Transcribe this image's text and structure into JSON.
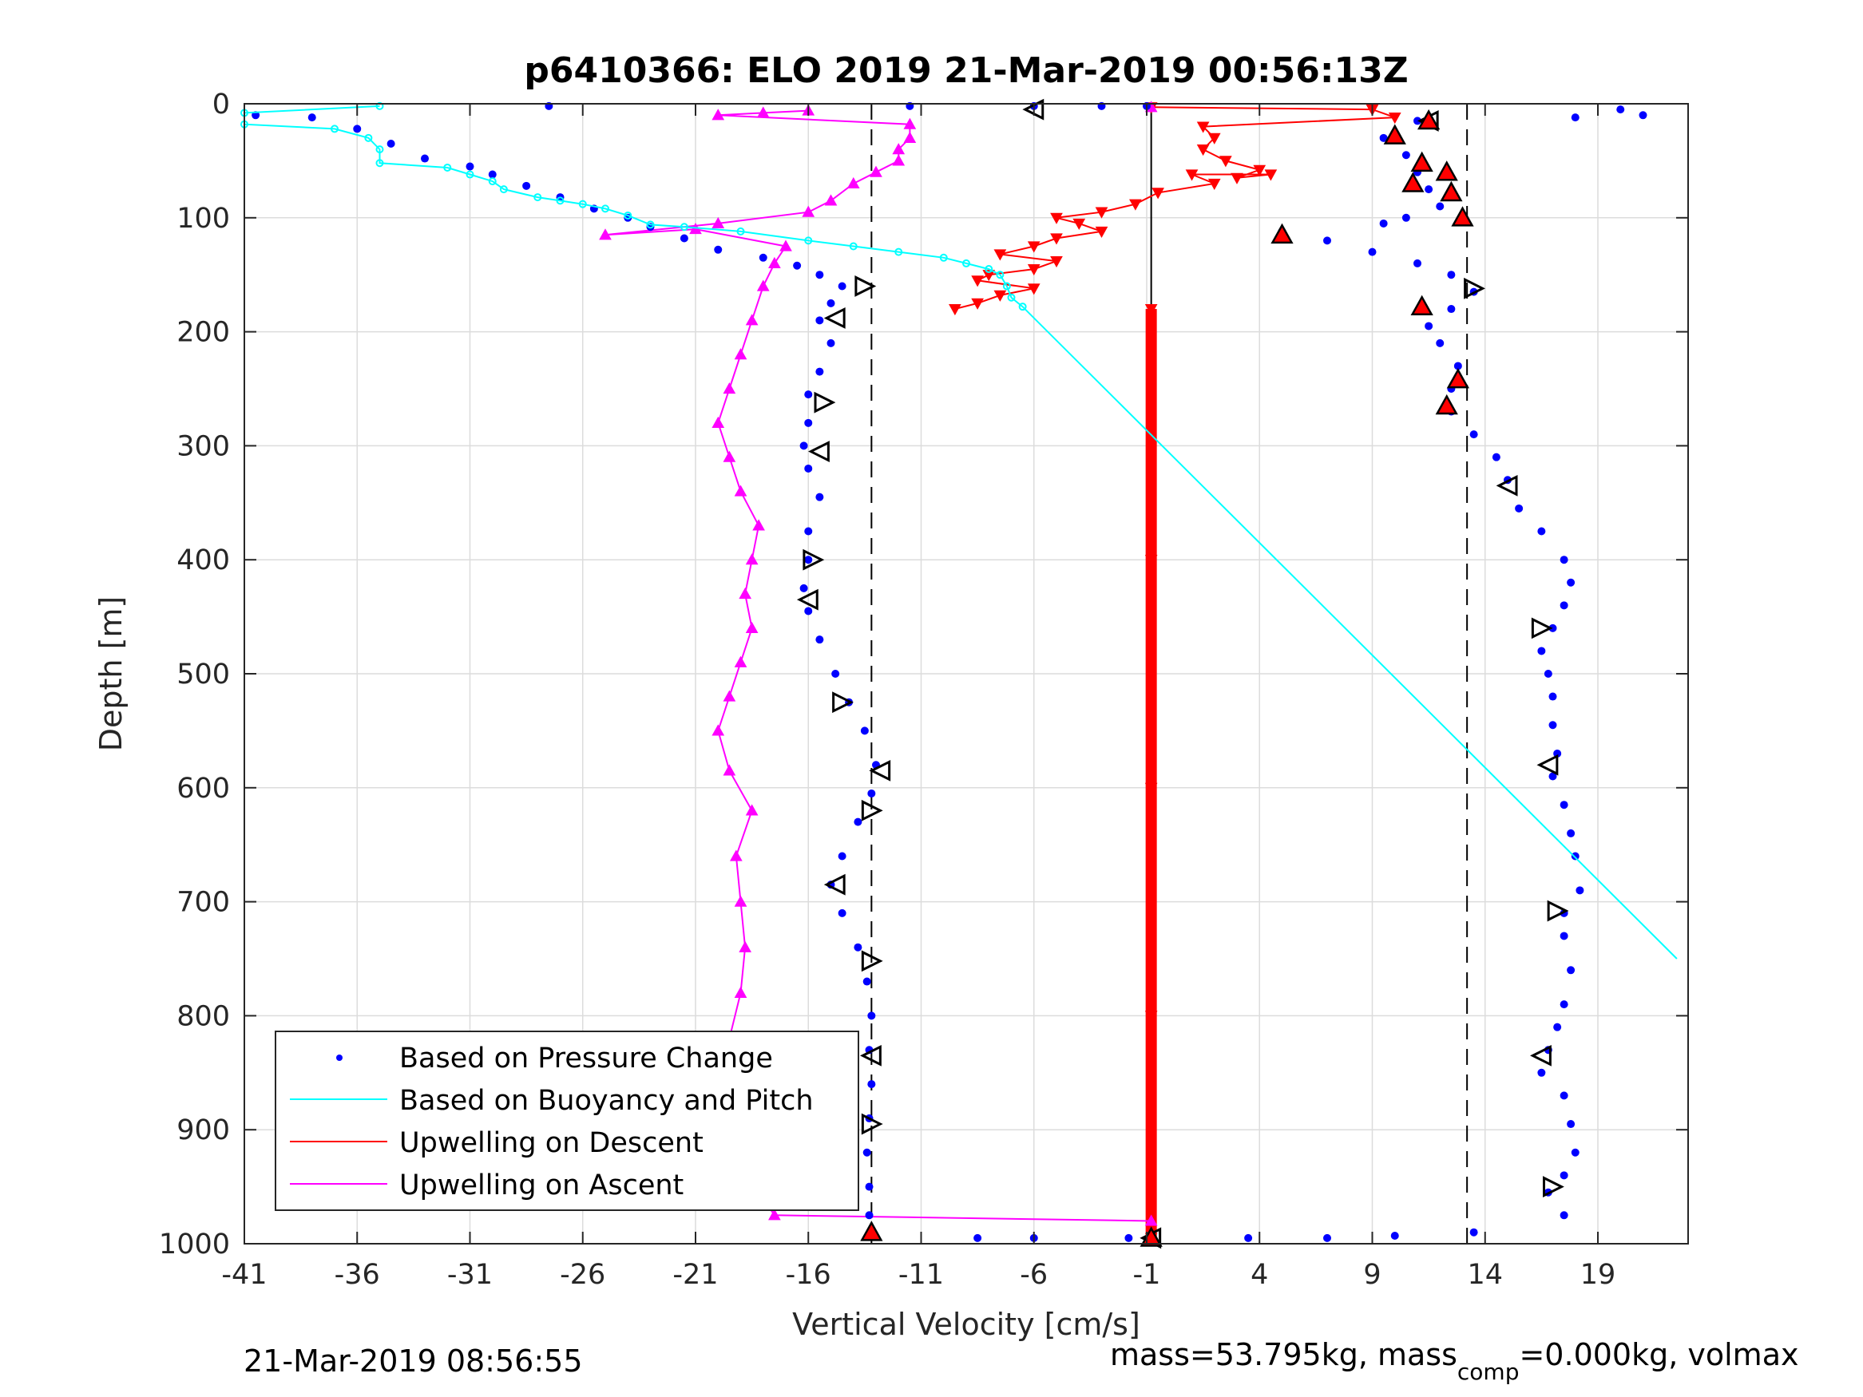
{
  "chart_data": {
    "type": "scatter",
    "title": "p6410366: ELO 2019 21-Mar-2019 00:56:13Z",
    "xlabel": "Vertical Velocity [cm/s]",
    "ylabel": "Depth [m]",
    "xlim": [
      -41,
      23
    ],
    "ylim": [
      0,
      1000
    ],
    "y_reversed": true,
    "xticks": [
      -41,
      -36,
      -31,
      -26,
      -21,
      -16,
      -11,
      -6,
      -1,
      4,
      9,
      14,
      19
    ],
    "yticks": [
      0,
      100,
      200,
      300,
      400,
      500,
      600,
      700,
      800,
      900,
      1000
    ],
    "grid": true,
    "legend_placement": "bottom-left",
    "reference_lines": {
      "vertical_dashed": [
        -13.2,
        13.2
      ],
      "vertical_solid": [
        -0.8
      ]
    },
    "series": [
      {
        "name": "Based on Pressure Change",
        "marker": "dot",
        "color": "#0000ff",
        "points": [
          [
            -40.5,
            10
          ],
          [
            -38,
            12
          ],
          [
            -36,
            22
          ],
          [
            -34.5,
            35
          ],
          [
            -33,
            48
          ],
          [
            -31,
            55
          ],
          [
            -30,
            62
          ],
          [
            -28.5,
            72
          ],
          [
            -27,
            82
          ],
          [
            -25.5,
            92
          ],
          [
            -24,
            100
          ],
          [
            -23,
            108
          ],
          [
            -21.5,
            118
          ],
          [
            -20,
            128
          ],
          [
            -18,
            135
          ],
          [
            -16.5,
            142
          ],
          [
            -15.5,
            150
          ],
          [
            -14.5,
            160
          ],
          [
            -15,
            175
          ],
          [
            -15.5,
            190
          ],
          [
            -15,
            210
          ],
          [
            -15.5,
            235
          ],
          [
            -16,
            255
          ],
          [
            -16,
            280
          ],
          [
            -16.2,
            300
          ],
          [
            -16,
            320
          ],
          [
            -15.5,
            345
          ],
          [
            -16,
            375
          ],
          [
            -16,
            400
          ],
          [
            -16.2,
            425
          ],
          [
            -16,
            445
          ],
          [
            -15.5,
            470
          ],
          [
            -14.8,
            500
          ],
          [
            -14.2,
            525
          ],
          [
            -13.5,
            550
          ],
          [
            -13,
            580
          ],
          [
            -13.2,
            605
          ],
          [
            -13.8,
            630
          ],
          [
            -14.5,
            660
          ],
          [
            -15,
            685
          ],
          [
            -14.5,
            710
          ],
          [
            -13.8,
            740
          ],
          [
            -13.4,
            770
          ],
          [
            -13.2,
            800
          ],
          [
            -13.3,
            830
          ],
          [
            -13.2,
            860
          ],
          [
            -13.3,
            890
          ],
          [
            -13.4,
            920
          ],
          [
            -13.3,
            950
          ],
          [
            -13.3,
            975
          ],
          [
            -13.2,
            990
          ],
          [
            -27.5,
            2
          ],
          [
            -11.5,
            2
          ],
          [
            -6,
            2
          ],
          [
            -3,
            2
          ],
          [
            -1,
            2
          ],
          [
            -1.8,
            995
          ],
          [
            -6,
            995
          ],
          [
            -8.5,
            995
          ],
          [
            3.5,
            995
          ],
          [
            7,
            995
          ],
          [
            10,
            993
          ],
          [
            13.5,
            990
          ],
          [
            11,
            15
          ],
          [
            9.5,
            30
          ],
          [
            10.5,
            45
          ],
          [
            11,
            60
          ],
          [
            11.5,
            75
          ],
          [
            12,
            90
          ],
          [
            10.5,
            100
          ],
          [
            9.5,
            105
          ],
          [
            5,
            112
          ],
          [
            7,
            120
          ],
          [
            9,
            130
          ],
          [
            11,
            140
          ],
          [
            12.5,
            150
          ],
          [
            13.5,
            165
          ],
          [
            12.5,
            180
          ],
          [
            11.5,
            195
          ],
          [
            12,
            210
          ],
          [
            12.8,
            230
          ],
          [
            12.5,
            250
          ],
          [
            12.5,
            270
          ],
          [
            13.5,
            290
          ],
          [
            14.5,
            310
          ],
          [
            15,
            330
          ],
          [
            15.5,
            355
          ],
          [
            16.5,
            375
          ],
          [
            17.5,
            400
          ],
          [
            17.8,
            420
          ],
          [
            17.5,
            440
          ],
          [
            17,
            460
          ],
          [
            16.5,
            480
          ],
          [
            16.8,
            500
          ],
          [
            17,
            520
          ],
          [
            17,
            545
          ],
          [
            17.2,
            570
          ],
          [
            17,
            590
          ],
          [
            17.5,
            615
          ],
          [
            17.8,
            640
          ],
          [
            18,
            660
          ],
          [
            18.2,
            690
          ],
          [
            17.5,
            710
          ],
          [
            17.5,
            730
          ],
          [
            17.8,
            760
          ],
          [
            17.5,
            790
          ],
          [
            17.2,
            810
          ],
          [
            16.8,
            830
          ],
          [
            16.5,
            850
          ],
          [
            17.5,
            870
          ],
          [
            17.8,
            895
          ],
          [
            18,
            920
          ],
          [
            17.5,
            940
          ],
          [
            16.8,
            955
          ],
          [
            17.5,
            975
          ],
          [
            20,
            5
          ],
          [
            21,
            10
          ],
          [
            18,
            12
          ]
        ]
      },
      {
        "name": "Based on Buoyancy and Pitch",
        "marker": "line",
        "color": "#00ffff",
        "points": [
          [
            -35,
            2
          ],
          [
            -41,
            8
          ],
          [
            -41,
            18
          ],
          [
            -37,
            22
          ],
          [
            -35.5,
            30
          ],
          [
            -35,
            40
          ],
          [
            -35,
            52
          ],
          [
            -32,
            56
          ],
          [
            -31,
            62
          ],
          [
            -30,
            68
          ],
          [
            -29.5,
            75
          ],
          [
            -28,
            82
          ],
          [
            -27,
            85
          ],
          [
            -26,
            88
          ],
          [
            -25,
            92
          ],
          [
            -24,
            98
          ],
          [
            -23,
            106
          ],
          [
            -21.5,
            108
          ],
          [
            -19,
            112
          ],
          [
            -16,
            120
          ],
          [
            -14,
            125
          ],
          [
            -12,
            130
          ],
          [
            -10,
            135
          ],
          [
            -9,
            140
          ],
          [
            -8,
            145
          ],
          [
            -7.5,
            150
          ],
          [
            -7.2,
            160
          ],
          [
            -7,
            170
          ],
          [
            -6.5,
            178
          ],
          [
            22.5,
            750
          ]
        ]
      },
      {
        "name": "Upwelling on Descent",
        "marker": "triangle-down",
        "color": "#ff0000",
        "points": [
          [
            -0.8,
            3
          ],
          [
            9,
            5
          ],
          [
            10,
            12
          ],
          [
            1.5,
            20
          ],
          [
            2,
            30
          ],
          [
            1.5,
            40
          ],
          [
            2.5,
            50
          ],
          [
            4,
            58
          ],
          [
            3,
            65
          ],
          [
            4.5,
            62
          ],
          [
            1,
            62
          ],
          [
            2,
            70
          ],
          [
            -0.5,
            78
          ],
          [
            -1.5,
            88
          ],
          [
            -3,
            95
          ],
          [
            -5,
            100
          ],
          [
            -4,
            105
          ],
          [
            -3,
            112
          ],
          [
            -5,
            118
          ],
          [
            -6,
            125
          ],
          [
            -7.5,
            132
          ],
          [
            -5,
            138
          ],
          [
            -6,
            145
          ],
          [
            -8,
            150
          ],
          [
            -8.5,
            155
          ],
          [
            -6,
            162
          ],
          [
            -7.5,
            168
          ],
          [
            -8.5,
            175
          ],
          [
            -9.5,
            180
          ],
          [
            -0.8,
            180
          ],
          [
            -0.8,
            400
          ],
          [
            -0.8,
            600
          ],
          [
            -0.8,
            800
          ],
          [
            -0.8,
            995
          ]
        ]
      },
      {
        "name": "Upwelling on Ascent",
        "marker": "triangle-up",
        "color": "#ff00ff",
        "points": [
          [
            -17.5,
            975
          ],
          [
            -18,
            960
          ],
          [
            -18.5,
            940
          ],
          [
            -18.8,
            900
          ],
          [
            -19,
            860
          ],
          [
            -19.5,
            820
          ],
          [
            -19,
            780
          ],
          [
            -18.8,
            740
          ],
          [
            -19,
            700
          ],
          [
            -19.2,
            660
          ],
          [
            -18.5,
            620
          ],
          [
            -19.5,
            585
          ],
          [
            -20,
            550
          ],
          [
            -19.5,
            520
          ],
          [
            -19,
            490
          ],
          [
            -18.5,
            460
          ],
          [
            -18.8,
            430
          ],
          [
            -18.5,
            400
          ],
          [
            -18.2,
            370
          ],
          [
            -19,
            340
          ],
          [
            -19.5,
            310
          ],
          [
            -20,
            280
          ],
          [
            -19.5,
            250
          ],
          [
            -19,
            220
          ],
          [
            -18.5,
            190
          ],
          [
            -18,
            160
          ],
          [
            -17.5,
            140
          ],
          [
            -17,
            125
          ],
          [
            -21,
            110
          ],
          [
            -25,
            115
          ],
          [
            -20,
            105
          ],
          [
            -16,
            95
          ],
          [
            -15,
            85
          ],
          [
            -14,
            70
          ],
          [
            -13,
            60
          ],
          [
            -12,
            50
          ],
          [
            -12,
            40
          ],
          [
            -11.5,
            30
          ],
          [
            -11.5,
            18
          ],
          [
            -20,
            10
          ],
          [
            -18,
            8
          ],
          [
            -16,
            6
          ],
          [
            -0.8,
            3
          ],
          [
            -0.8,
            980
          ]
        ]
      },
      {
        "name": "",
        "marker": "open-triangle",
        "color": "#000000",
        "points": [
          [
            -6,
            5
          ],
          [
            -13.5,
            160
          ],
          [
            -14.8,
            188
          ],
          [
            -15.3,
            262
          ],
          [
            -15.5,
            305
          ],
          [
            -15.8,
            400
          ],
          [
            -16,
            435
          ],
          [
            -14.5,
            525
          ],
          [
            -12.8,
            585
          ],
          [
            -13.2,
            620
          ],
          [
            -14.8,
            685
          ],
          [
            -13.2,
            752
          ],
          [
            -13.2,
            835
          ],
          [
            -13.2,
            895
          ],
          [
            11.5,
            15
          ],
          [
            13.5,
            162
          ],
          [
            15,
            335
          ],
          [
            16.5,
            460
          ],
          [
            16.8,
            580
          ],
          [
            17.2,
            708
          ],
          [
            16.5,
            835
          ],
          [
            17,
            950
          ],
          [
            -0.8,
            995
          ]
        ]
      },
      {
        "name": "",
        "marker": "filled-triangle",
        "color": "#ff0000",
        "points": [
          [
            11.5,
            15
          ],
          [
            10,
            28
          ],
          [
            11.2,
            52
          ],
          [
            12.3,
            60
          ],
          [
            10.8,
            70
          ],
          [
            12.5,
            78
          ],
          [
            13,
            100
          ],
          [
            5,
            115
          ],
          [
            11.2,
            178
          ],
          [
            12.8,
            242
          ],
          [
            12.3,
            265
          ],
          [
            -13.2,
            990
          ],
          [
            -0.8,
            995
          ]
        ]
      }
    ]
  },
  "footer": {
    "timestamp": "21-Mar-2019 08:56:55",
    "mass_prefix": "mass=53.795kg, mass",
    "mass_sub": "comp",
    "mass_suffix": "=0.000kg, volmax"
  }
}
